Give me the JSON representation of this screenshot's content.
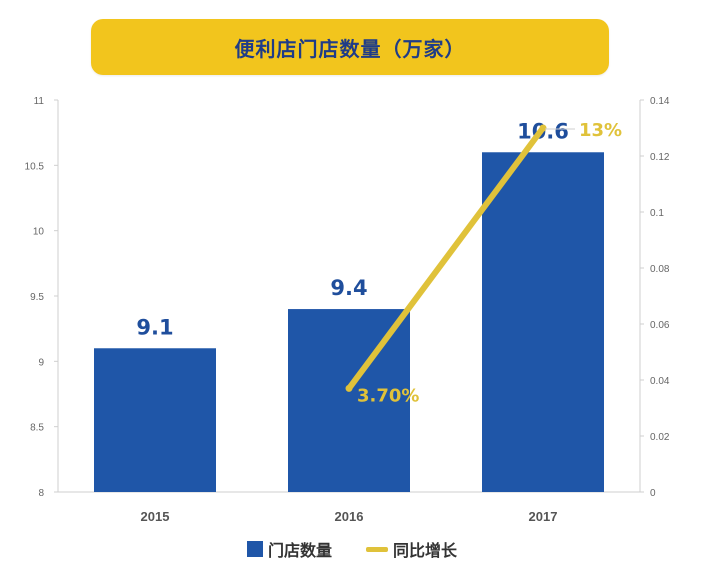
{
  "chart_data": {
    "type": "bar",
    "title": "便利店门店数量（万家）",
    "categories": [
      "2015",
      "2016",
      "2017"
    ],
    "series": [
      {
        "name": "门店数量",
        "type": "bar",
        "axis": "left",
        "values": [
          9.1,
          9.4,
          10.6
        ],
        "labels": [
          "9.1",
          "9.4",
          "10.6"
        ]
      },
      {
        "name": "同比增长",
        "type": "line",
        "axis": "right",
        "values": [
          null,
          0.037,
          0.13
        ],
        "labels": [
          "",
          "3.70%",
          "13%"
        ]
      }
    ],
    "y_left": {
      "range": [
        8,
        11
      ],
      "ticks": [
        "8",
        "8.5",
        "9",
        "9.5",
        "10",
        "10.5",
        "11"
      ]
    },
    "y_right": {
      "range": [
        0,
        0.14
      ],
      "ticks": [
        "0",
        "0.02",
        "0.04",
        "0.06",
        "0.08",
        "0.1",
        "0.12",
        "0.14"
      ]
    },
    "legend_position": "bottom",
    "colors": {
      "bar": "#1f56a8",
      "line": "#e0c23a",
      "title_bg": "#f2c51d",
      "title_text": "#1f3c88",
      "bar_label": "#1f4e9c"
    }
  }
}
